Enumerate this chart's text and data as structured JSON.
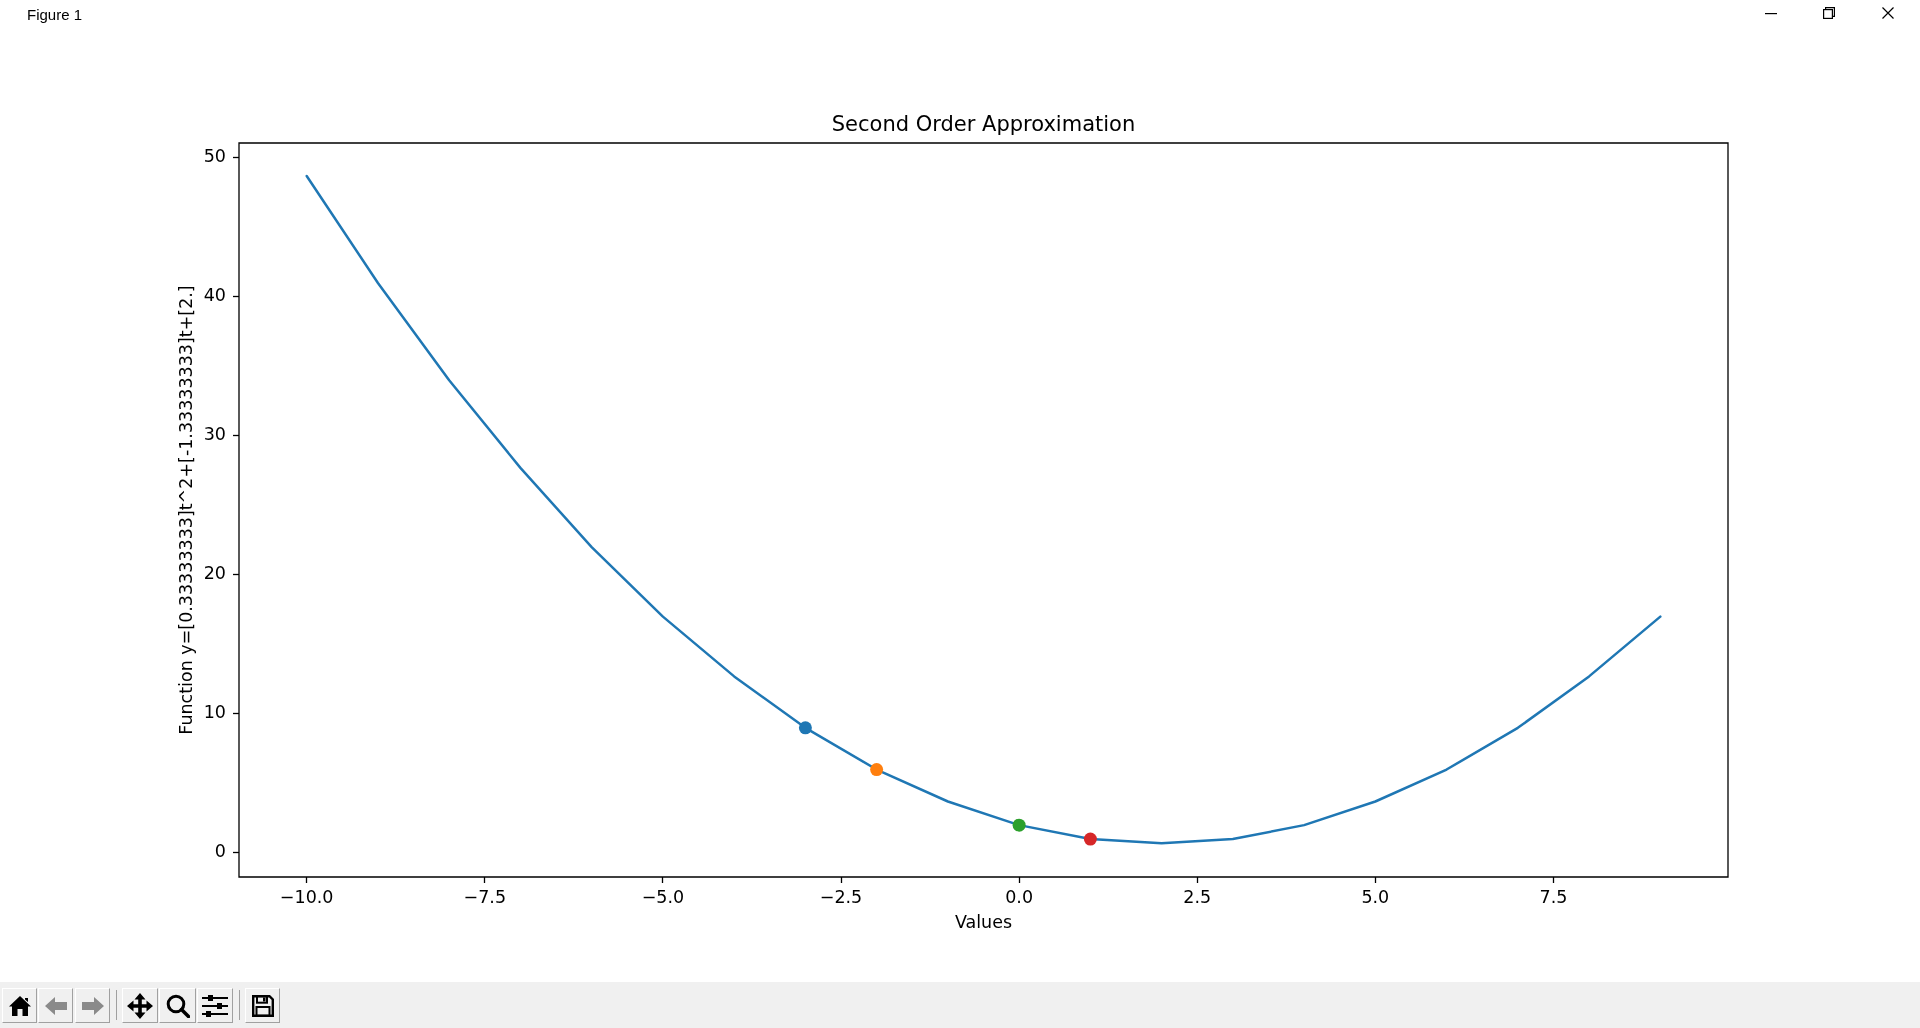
{
  "chart_data": {
    "type": "line",
    "title": "Second Order Approximation",
    "xlabel": "Values",
    "ylabel": "Function y=[0.33333333]t^2+[-1.33333333]t+[2.]",
    "annotations": [
      "Figure 1"
    ],
    "series": [
      {
        "color": "#1f77b4",
        "line_style": "solid",
        "x": [
          -10,
          -9,
          -8,
          -7,
          -6,
          -5,
          -4,
          -3,
          -2,
          -1,
          0,
          1,
          2,
          3,
          4,
          5,
          6,
          7,
          8,
          9
        ],
        "values": [
          48.7,
          41,
          34,
          27.7,
          22,
          17,
          12.7,
          9,
          6,
          3.7,
          2,
          1,
          0.7,
          1,
          2,
          3.7,
          6,
          9,
          12.7,
          17
        ]
      },
      {
        "type": "scatter",
        "color": "#1f77b4",
        "marker": "circle",
        "x": [
          -3
        ],
        "values": [
          9
        ]
      },
      {
        "type": "scatter",
        "color": "#ff7f0e",
        "marker": "circle",
        "x": [
          -2
        ],
        "values": [
          6
        ]
      },
      {
        "type": "scatter",
        "color": "#2ca02c",
        "marker": "circle",
        "x": [
          0
        ],
        "values": [
          2
        ]
      },
      {
        "type": "scatter",
        "color": "#d62728",
        "marker": "circle",
        "x": [
          1
        ],
        "values": [
          1
        ]
      }
    ],
    "xlim": [
      -10.95,
      9.95
    ],
    "xticks": [
      {
        "value": -10,
        "label": "−10.0"
      },
      {
        "value": -7.5,
        "label": "−7.5"
      },
      {
        "value": -5,
        "label": "−5.0"
      },
      {
        "value": -2.5,
        "label": "−2.5"
      },
      {
        "value": 0,
        "label": "0.0"
      },
      {
        "value": 2.5,
        "label": "2.5"
      },
      {
        "value": 5,
        "label": "5.0"
      },
      {
        "value": 7.5,
        "label": "7.5"
      }
    ],
    "ylim": [
      -1.73,
      51.07
    ],
    "yticks": [
      0,
      10,
      20,
      30,
      40,
      50
    ],
    "grid": false,
    "legend": false
  }
}
